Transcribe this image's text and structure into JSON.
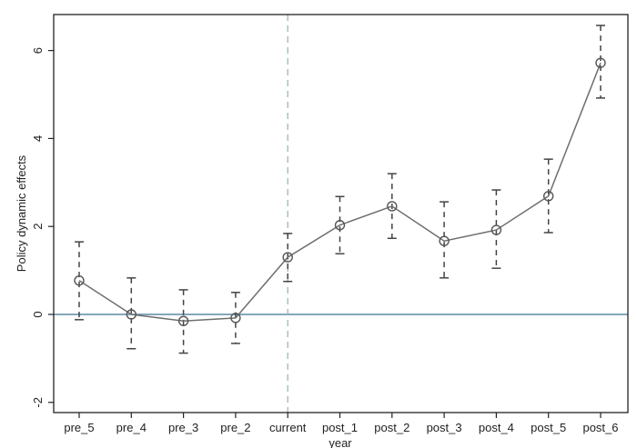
{
  "chart_data": {
    "type": "line",
    "title": "",
    "xlabel": "year",
    "ylabel": "Policy dynamic effects",
    "ylim": [
      -2.25,
      6.8
    ],
    "yticks": [
      -2,
      0,
      2,
      4,
      6
    ],
    "ytick_labels": [
      "-2",
      "0",
      "2",
      "4",
      "6"
    ],
    "categories": [
      "pre_5",
      "pre_4",
      "pre_3",
      "pre_2",
      "current",
      "post_1",
      "post_2",
      "post_3",
      "post_4",
      "post_5",
      "post_6"
    ],
    "series": [
      {
        "name": "Policy dynamic effects",
        "marker": "hollow-circle",
        "values": [
          0.77,
          0.0,
          -0.15,
          -0.08,
          1.3,
          2.03,
          2.46,
          1.67,
          1.92,
          2.69,
          5.72
        ],
        "ci_upper": [
          1.65,
          0.83,
          0.56,
          0.5,
          1.84,
          2.68,
          3.2,
          2.56,
          2.83,
          3.53,
          6.57
        ],
        "ci_lower": [
          -0.12,
          -0.78,
          -0.88,
          -0.66,
          0.75,
          1.38,
          1.73,
          0.83,
          1.05,
          1.86,
          4.92
        ]
      }
    ],
    "reference_lines": {
      "horizontal": {
        "y": 0,
        "style": "solid",
        "color": "#5b8aa6"
      },
      "vertical": {
        "x": "current",
        "style": "dashed",
        "color": "#8fb3b0"
      }
    },
    "grid": false,
    "legend": "none"
  },
  "colors": {
    "series_line": "#6e6e6e",
    "error_bar": "#444444",
    "axis": "#222222",
    "zero_line": "#5b8aa6",
    "vertical_ref": "#8fb3b0"
  }
}
